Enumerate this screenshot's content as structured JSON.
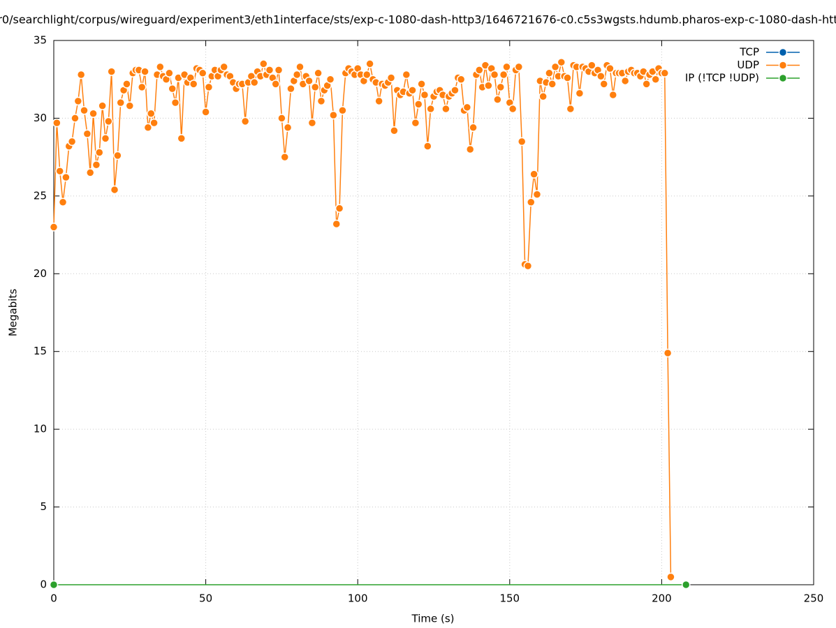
{
  "chart_data": {
    "type": "line",
    "title": "r0/searchlight/corpus/wireguard/experiment3/eth1interface/sts/exp-c-1080-dash-http3/1646721676-c0.c5s3wgsts.hdumb.pharos-exp-c-1080-dash-htt",
    "xlabel": "Time (s)",
    "ylabel": "Megabits",
    "xlim": [
      0,
      250
    ],
    "xticks": [
      0,
      50,
      100,
      150,
      200,
      250
    ],
    "ylim": [
      0,
      35
    ],
    "yticks": [
      0,
      5,
      10,
      15,
      20,
      25,
      30,
      35
    ],
    "grid": true,
    "legend": "top-right",
    "series": [
      {
        "name": "TCP",
        "color": "#0060ad",
        "x": [],
        "values": []
      },
      {
        "name": "UDP",
        "color": "#ff7f0e",
        "x": [
          0,
          1,
          2,
          3,
          4,
          5,
          6,
          7,
          8,
          9,
          10,
          11,
          12,
          13,
          14,
          15,
          16,
          17,
          18,
          19,
          20,
          21,
          22,
          23,
          24,
          25,
          26,
          27,
          28,
          29,
          30,
          31,
          32,
          33,
          34,
          35,
          36,
          37,
          38,
          39,
          40,
          41,
          42,
          43,
          44,
          45,
          46,
          47,
          48,
          49,
          50,
          51,
          52,
          53,
          54,
          55,
          56,
          57,
          58,
          59,
          60,
          61,
          62,
          63,
          64,
          65,
          66,
          67,
          68,
          69,
          70,
          71,
          72,
          73,
          74,
          75,
          76,
          77,
          78,
          79,
          80,
          81,
          82,
          83,
          84,
          85,
          86,
          87,
          88,
          89,
          90,
          91,
          92,
          93,
          94,
          95,
          96,
          97,
          98,
          99,
          100,
          101,
          102,
          103,
          104,
          105,
          106,
          107,
          108,
          109,
          110,
          111,
          112,
          113,
          114,
          115,
          116,
          117,
          118,
          119,
          120,
          121,
          122,
          123,
          124,
          125,
          126,
          127,
          128,
          129,
          130,
          131,
          132,
          133,
          134,
          135,
          136,
          137,
          138,
          139,
          140,
          141,
          142,
          143,
          144,
          145,
          146,
          147,
          148,
          149,
          150,
          151,
          152,
          153,
          154,
          155,
          156,
          157,
          158,
          159,
          160,
          161,
          162,
          163,
          164,
          165,
          166,
          167,
          168,
          169,
          170,
          171,
          172,
          173,
          174,
          175,
          176,
          177,
          178,
          179,
          180,
          181,
          182,
          183,
          184,
          185,
          186,
          187,
          188,
          189,
          190,
          191,
          192,
          193,
          194,
          195,
          196,
          197,
          198,
          199,
          200,
          201,
          202,
          203
        ],
        "values": [
          23.0,
          29.7,
          26.6,
          24.6,
          26.2,
          28.2,
          28.5,
          30.0,
          31.1,
          32.8,
          30.5,
          29.0,
          26.5,
          30.3,
          27.0,
          27.8,
          30.8,
          28.7,
          29.8,
          33.0,
          25.4,
          27.6,
          31.0,
          31.8,
          32.2,
          30.8,
          32.9,
          33.1,
          33.1,
          32.0,
          33.0,
          29.4,
          30.3,
          29.7,
          32.8,
          33.3,
          32.7,
          32.5,
          32.9,
          31.9,
          31.0,
          32.6,
          28.7,
          32.8,
          32.3,
          32.6,
          32.2,
          33.2,
          33.1,
          32.9,
          30.4,
          32.0,
          32.7,
          33.1,
          32.7,
          33.1,
          33.3,
          32.8,
          32.7,
          32.3,
          31.9,
          32.2,
          32.2,
          29.8,
          32.3,
          32.7,
          32.3,
          33.0,
          32.7,
          33.5,
          32.8,
          33.1,
          32.6,
          32.2,
          33.1,
          30.0,
          27.5,
          29.4,
          31.9,
          32.4,
          32.8,
          33.3,
          32.2,
          32.7,
          32.4,
          29.7,
          32.0,
          32.9,
          31.1,
          31.8,
          32.1,
          32.5,
          30.2,
          23.2,
          24.2,
          30.5,
          32.9,
          33.2,
          33.0,
          32.8,
          33.2,
          32.8,
          32.4,
          32.8,
          33.5,
          32.5,
          32.3,
          31.1,
          32.2,
          32.1,
          32.3,
          32.6,
          29.2,
          31.8,
          31.5,
          31.7,
          32.8,
          31.6,
          31.8,
          29.7,
          30.9,
          32.2,
          31.5,
          28.2,
          30.6,
          31.4,
          31.7,
          31.8,
          31.5,
          30.6,
          31.4,
          31.6,
          31.8,
          32.6,
          32.5,
          30.5,
          30.7,
          28.0,
          29.4,
          32.8,
          33.1,
          32.0,
          33.4,
          32.1,
          33.2,
          32.8,
          31.2,
          32.0,
          32.8,
          33.3,
          31.0,
          30.6,
          33.1,
          33.3,
          28.5,
          20.6,
          20.5,
          24.6,
          26.4,
          25.1,
          32.4,
          31.4,
          32.3,
          32.9,
          32.2,
          33.3,
          32.7,
          33.6,
          32.7,
          32.6,
          30.6,
          33.4,
          33.3,
          31.6,
          33.3,
          33.2,
          33.0,
          33.4,
          32.9,
          33.1,
          32.7,
          32.2,
          33.4,
          33.2,
          31.5,
          32.9,
          32.9,
          32.9,
          32.4,
          33.0,
          33.1,
          32.9,
          32.9,
          32.7,
          33.0,
          32.2,
          32.8,
          33.0,
          32.5,
          33.2,
          32.9,
          32.9,
          14.9,
          0.5
        ]
      },
      {
        "name": "IP (!TCP  !UDP)",
        "color": "#2ca02c",
        "x": [
          0,
          208
        ],
        "values": [
          0,
          0
        ]
      }
    ]
  }
}
